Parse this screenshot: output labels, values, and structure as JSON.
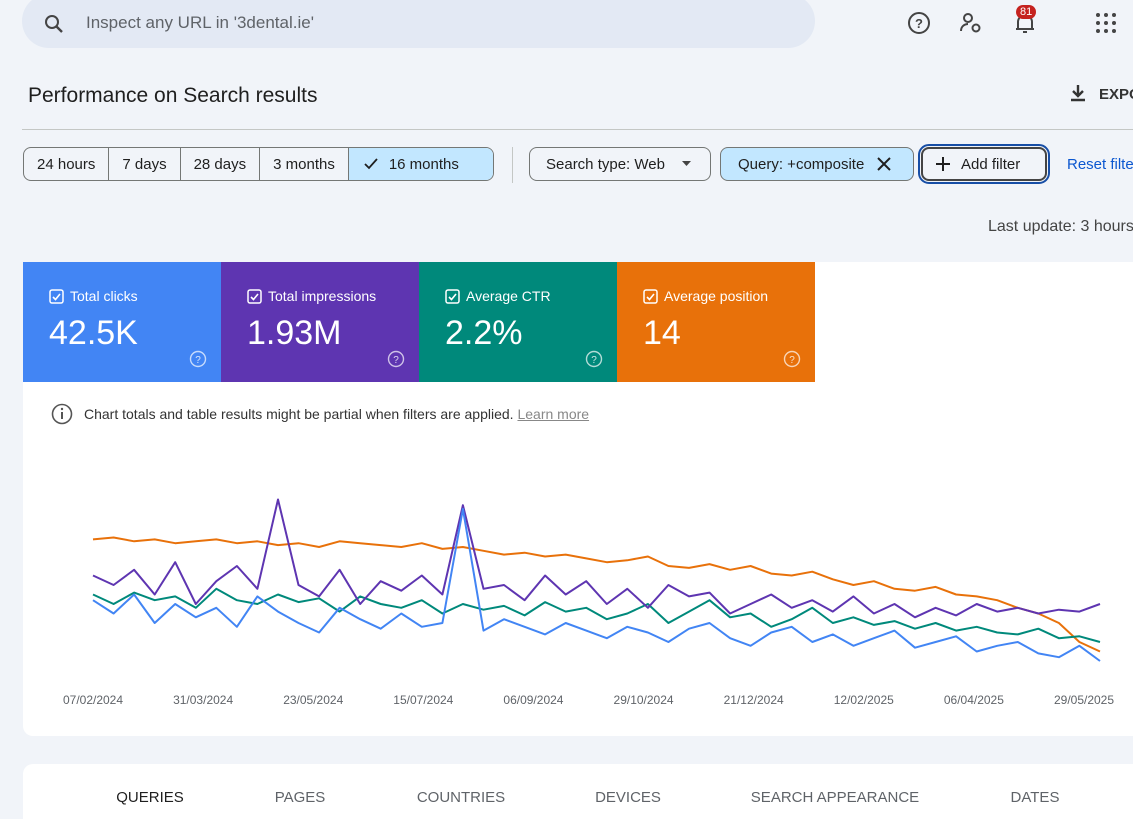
{
  "search_placeholder": "Inspect any URL in '3dental.ie'",
  "notification_count": 81,
  "page_title": "Performance on Search results",
  "export_label": "EXPO",
  "date_ranges": [
    "24 hours",
    "7 days",
    "28 days",
    "3 months",
    "16 months"
  ],
  "search_type_filter": "Search type: Web",
  "query_filter": "Query: +composite",
  "add_filter": "Add filter",
  "reset_filters": "Reset filte",
  "last_update": "Last update: 3 hours",
  "cards": [
    {
      "label": "Total clicks",
      "value": "42.5K"
    },
    {
      "label": "Total impressions",
      "value": "1.93M"
    },
    {
      "label": "Average CTR",
      "value": "2.2%"
    },
    {
      "label": "Average position",
      "value": "14"
    }
  ],
  "info_text": "Chart totals and table results might be partial when filters are applied.",
  "learn_more": "Learn more",
  "chart_data": {
    "type": "line",
    "xtick_labels": [
      "07/02/2024",
      "31/03/2024",
      "23/05/2024",
      "15/07/2024",
      "06/09/2024",
      "29/10/2024",
      "21/12/2024",
      "12/02/2025",
      "06/04/2025",
      "29/05/2025"
    ],
    "ylim": [
      0,
      100
    ],
    "series": [
      {
        "color": "#4285f4",
        "values": [
          42,
          35,
          45,
          30,
          40,
          33,
          38,
          28,
          44,
          36,
          30,
          25,
          38,
          32,
          27,
          35,
          28,
          30,
          90,
          26,
          32,
          28,
          24,
          30,
          26,
          22,
          28,
          25,
          20,
          27,
          30,
          22,
          18,
          25,
          28,
          20,
          24,
          18,
          22,
          26,
          17,
          20,
          23,
          15,
          18,
          20,
          14,
          12,
          18,
          10
        ]
      },
      {
        "color": "#5e35b1",
        "values": [
          55,
          50,
          58,
          45,
          62,
          40,
          52,
          60,
          48,
          95,
          50,
          44,
          58,
          40,
          52,
          47,
          55,
          45,
          92,
          48,
          50,
          42,
          55,
          45,
          52,
          40,
          48,
          38,
          50,
          44,
          46,
          35,
          40,
          45,
          38,
          42,
          36,
          44,
          35,
          40,
          33,
          38,
          34,
          40,
          36,
          38,
          35,
          37,
          36,
          40
        ]
      },
      {
        "color": "#00897b",
        "values": [
          45,
          40,
          46,
          42,
          44,
          38,
          48,
          42,
          40,
          45,
          41,
          43,
          36,
          44,
          40,
          38,
          42,
          35,
          40,
          37,
          39,
          34,
          41,
          36,
          38,
          32,
          35,
          40,
          30,
          36,
          42,
          33,
          35,
          28,
          32,
          38,
          30,
          33,
          29,
          31,
          27,
          30,
          26,
          28,
          25,
          24,
          27,
          22,
          23,
          20
        ]
      },
      {
        "color": "#e8710a",
        "values": [
          74,
          75,
          73,
          74,
          72,
          73,
          74,
          72,
          73,
          71,
          72,
          70,
          73,
          72,
          71,
          70,
          72,
          69,
          70,
          68,
          66,
          67,
          65,
          66,
          64,
          62,
          63,
          65,
          60,
          59,
          61,
          58,
          60,
          56,
          55,
          57,
          53,
          50,
          52,
          48,
          47,
          49,
          45,
          44,
          42,
          38,
          35,
          30,
          20,
          15
        ]
      }
    ]
  },
  "tabs": [
    "QUERIES",
    "PAGES",
    "COUNTRIES",
    "DEVICES",
    "SEARCH APPEARANCE",
    "DATES"
  ]
}
